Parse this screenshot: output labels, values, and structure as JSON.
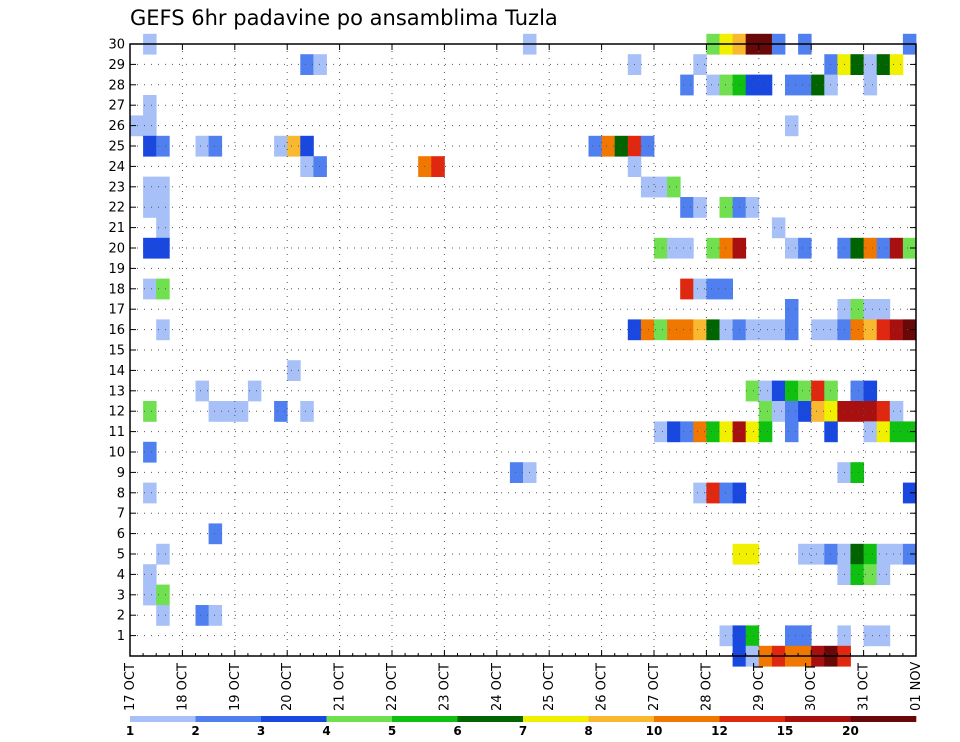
{
  "chart_data": {
    "type": "heatmap",
    "title": "GEFS 6hr padavine po ansamblima Tuzla",
    "xlabel": "",
    "ylabel": "",
    "x_start": "17 OCT",
    "x_steps_per_day": 4,
    "x_total_steps": 60,
    "x_tick_labels": [
      "17 OCT",
      "18 OCT",
      "19 OCT",
      "20 OCT",
      "21 OCT",
      "22 OCT",
      "23 OCT",
      "24 OCT",
      "25 OCT",
      "26 OCT",
      "27 OCT",
      "28 OCT",
      "29 OCT",
      "30 OCT",
      "31 OCT",
      "01 NOV"
    ],
    "y_tick_labels": [
      "1",
      "2",
      "3",
      "4",
      "5",
      "6",
      "7",
      "8",
      "9",
      "10",
      "11",
      "12",
      "13",
      "14",
      "15",
      "16",
      "17",
      "18",
      "19",
      "20",
      "21",
      "22",
      "23",
      "24",
      "25",
      "26",
      "27",
      "28",
      "29",
      "30"
    ],
    "ylim": [
      0,
      30
    ],
    "grid": true,
    "colorbar": {
      "placement": "bottom",
      "boundaries": [
        "1",
        "2",
        "3",
        "4",
        "5",
        "6",
        "7",
        "8",
        "10",
        "12",
        "15",
        "20"
      ],
      "colors": [
        "#a8c0f8",
        "#5080f0",
        "#1848e0",
        "#70e050",
        "#10c010",
        "#006400",
        "#f0f000",
        "#f8b830",
        "#f07800",
        "#e02810",
        "#a81010",
        "#680808"
      ]
    },
    "cells_note": "each cell: [ensemble_member, step_index_from_17_OCT_00z, color_class_index]",
    "cells": [
      [
        30,
        1,
        0
      ],
      [
        30,
        30,
        0
      ],
      [
        30,
        44,
        3
      ],
      [
        30,
        45,
        6
      ],
      [
        30,
        46,
        7
      ],
      [
        30,
        47,
        11
      ],
      [
        30,
        48,
        11
      ],
      [
        30,
        49,
        1
      ],
      [
        30,
        51,
        1
      ],
      [
        30,
        59,
        1
      ],
      [
        29,
        13,
        1
      ],
      [
        29,
        14,
        0
      ],
      [
        29,
        38,
        0
      ],
      [
        29,
        43,
        0
      ],
      [
        29,
        53,
        1
      ],
      [
        29,
        54,
        6
      ],
      [
        29,
        55,
        5
      ],
      [
        29,
        56,
        0
      ],
      [
        29,
        57,
        5
      ],
      [
        29,
        58,
        6
      ],
      [
        28,
        42,
        1
      ],
      [
        28,
        44,
        0
      ],
      [
        28,
        45,
        3
      ],
      [
        28,
        46,
        4
      ],
      [
        28,
        47,
        2
      ],
      [
        28,
        48,
        2
      ],
      [
        28,
        50,
        1
      ],
      [
        28,
        51,
        1
      ],
      [
        28,
        52,
        5
      ],
      [
        28,
        53,
        0
      ],
      [
        28,
        56,
        0
      ],
      [
        27,
        1,
        0
      ],
      [
        26,
        0,
        0
      ],
      [
        26,
        1,
        0
      ],
      [
        26,
        50,
        0
      ],
      [
        25,
        1,
        2
      ],
      [
        25,
        2,
        1
      ],
      [
        25,
        5,
        0
      ],
      [
        25,
        6,
        1
      ],
      [
        25,
        11,
        0
      ],
      [
        25,
        12,
        7
      ],
      [
        25,
        13,
        2
      ],
      [
        25,
        35,
        1
      ],
      [
        25,
        36,
        8
      ],
      [
        25,
        37,
        5
      ],
      [
        25,
        38,
        9
      ],
      [
        25,
        39,
        1
      ],
      [
        24,
        13,
        0
      ],
      [
        24,
        14,
        1
      ],
      [
        24,
        22,
        8
      ],
      [
        24,
        23,
        9
      ],
      [
        24,
        38,
        0
      ],
      [
        23,
        1,
        0
      ],
      [
        23,
        2,
        0
      ],
      [
        23,
        39,
        0
      ],
      [
        23,
        40,
        0
      ],
      [
        23,
        41,
        3
      ],
      [
        22,
        1,
        0
      ],
      [
        22,
        2,
        0
      ],
      [
        22,
        42,
        1
      ],
      [
        22,
        43,
        0
      ],
      [
        22,
        45,
        3
      ],
      [
        22,
        46,
        1
      ],
      [
        22,
        47,
        0
      ],
      [
        21,
        2,
        0
      ],
      [
        21,
        49,
        0
      ],
      [
        20,
        1,
        2
      ],
      [
        20,
        2,
        2
      ],
      [
        20,
        40,
        3
      ],
      [
        20,
        41,
        0
      ],
      [
        20,
        42,
        0
      ],
      [
        20,
        44,
        3
      ],
      [
        20,
        45,
        8
      ],
      [
        20,
        46,
        10
      ],
      [
        20,
        50,
        0
      ],
      [
        20,
        51,
        1
      ],
      [
        20,
        54,
        1
      ],
      [
        20,
        55,
        5
      ],
      [
        20,
        56,
        8
      ],
      [
        20,
        57,
        1
      ],
      [
        20,
        58,
        10
      ],
      [
        20,
        59,
        3
      ],
      [
        18,
        1,
        0
      ],
      [
        18,
        2,
        3
      ],
      [
        18,
        42,
        9
      ],
      [
        18,
        43,
        0
      ],
      [
        18,
        44,
        1
      ],
      [
        18,
        45,
        1
      ],
      [
        17,
        50,
        1
      ],
      [
        17,
        54,
        0
      ],
      [
        17,
        55,
        3
      ],
      [
        17,
        56,
        0
      ],
      [
        17,
        57,
        0
      ],
      [
        16,
        2,
        0
      ],
      [
        16,
        38,
        2
      ],
      [
        16,
        39,
        8
      ],
      [
        16,
        40,
        3
      ],
      [
        16,
        41,
        8
      ],
      [
        16,
        42,
        8
      ],
      [
        16,
        43,
        7
      ],
      [
        16,
        44,
        5
      ],
      [
        16,
        45,
        0
      ],
      [
        16,
        46,
        1
      ],
      [
        16,
        47,
        0
      ],
      [
        16,
        48,
        0
      ],
      [
        16,
        49,
        0
      ],
      [
        16,
        50,
        1
      ],
      [
        16,
        52,
        0
      ],
      [
        16,
        53,
        0
      ],
      [
        16,
        54,
        1
      ],
      [
        16,
        55,
        8
      ],
      [
        16,
        56,
        7
      ],
      [
        16,
        57,
        9
      ],
      [
        16,
        58,
        10
      ],
      [
        16,
        59,
        11
      ],
      [
        14,
        12,
        0
      ],
      [
        13,
        5,
        0
      ],
      [
        13,
        9,
        0
      ],
      [
        13,
        47,
        3
      ],
      [
        13,
        48,
        0
      ],
      [
        13,
        49,
        2
      ],
      [
        13,
        50,
        4
      ],
      [
        13,
        51,
        3
      ],
      [
        13,
        52,
        9
      ],
      [
        13,
        53,
        3
      ],
      [
        13,
        55,
        1
      ],
      [
        13,
        56,
        2
      ],
      [
        12,
        1,
        3
      ],
      [
        12,
        6,
        0
      ],
      [
        12,
        7,
        0
      ],
      [
        12,
        8,
        0
      ],
      [
        12,
        11,
        1
      ],
      [
        12,
        13,
        0
      ],
      [
        12,
        48,
        3
      ],
      [
        12,
        49,
        0
      ],
      [
        12,
        50,
        1
      ],
      [
        12,
        51,
        2
      ],
      [
        12,
        52,
        7
      ],
      [
        12,
        53,
        6
      ],
      [
        12,
        54,
        10
      ],
      [
        12,
        55,
        10
      ],
      [
        12,
        56,
        10
      ],
      [
        12,
        57,
        9
      ],
      [
        12,
        58,
        0
      ],
      [
        11,
        40,
        0
      ],
      [
        11,
        41,
        2
      ],
      [
        11,
        42,
        1
      ],
      [
        11,
        43,
        8
      ],
      [
        11,
        44,
        4
      ],
      [
        11,
        45,
        6
      ],
      [
        11,
        46,
        10
      ],
      [
        11,
        47,
        6
      ],
      [
        11,
        48,
        4
      ],
      [
        11,
        50,
        1
      ],
      [
        11,
        53,
        2
      ],
      [
        11,
        56,
        0
      ],
      [
        11,
        57,
        6
      ],
      [
        11,
        58,
        4
      ],
      [
        11,
        59,
        4
      ],
      [
        10,
        1,
        1
      ],
      [
        9,
        29,
        1
      ],
      [
        9,
        30,
        0
      ],
      [
        9,
        54,
        0
      ],
      [
        9,
        55,
        4
      ],
      [
        8,
        1,
        0
      ],
      [
        8,
        43,
        0
      ],
      [
        8,
        44,
        9
      ],
      [
        8,
        45,
        1
      ],
      [
        8,
        46,
        2
      ],
      [
        8,
        59,
        2
      ],
      [
        6,
        6,
        1
      ],
      [
        5,
        2,
        0
      ],
      [
        5,
        46,
        6
      ],
      [
        5,
        47,
        6
      ],
      [
        5,
        51,
        0
      ],
      [
        5,
        52,
        0
      ],
      [
        5,
        53,
        1
      ],
      [
        5,
        54,
        0
      ],
      [
        5,
        55,
        5
      ],
      [
        5,
        56,
        4
      ],
      [
        5,
        57,
        0
      ],
      [
        5,
        58,
        0
      ],
      [
        5,
        59,
        1
      ],
      [
        4,
        1,
        0
      ],
      [
        4,
        54,
        0
      ],
      [
        4,
        55,
        4
      ],
      [
        4,
        56,
        3
      ],
      [
        4,
        57,
        0
      ],
      [
        3,
        1,
        0
      ],
      [
        3,
        2,
        3
      ],
      [
        2,
        2,
        0
      ],
      [
        2,
        5,
        1
      ],
      [
        2,
        6,
        0
      ],
      [
        1,
        45,
        0
      ],
      [
        1,
        46,
        2
      ],
      [
        1,
        47,
        4
      ],
      [
        1,
        50,
        1
      ],
      [
        1,
        51,
        1
      ],
      [
        1,
        54,
        0
      ],
      [
        1,
        56,
        0
      ],
      [
        1,
        57,
        0
      ],
      [
        0,
        46,
        2
      ],
      [
        0,
        47,
        0
      ],
      [
        0,
        48,
        8
      ],
      [
        0,
        49,
        9
      ],
      [
        0,
        50,
        8
      ],
      [
        0,
        51,
        8
      ],
      [
        0,
        52,
        10
      ],
      [
        0,
        53,
        11
      ],
      [
        0,
        54,
        9
      ]
    ]
  }
}
